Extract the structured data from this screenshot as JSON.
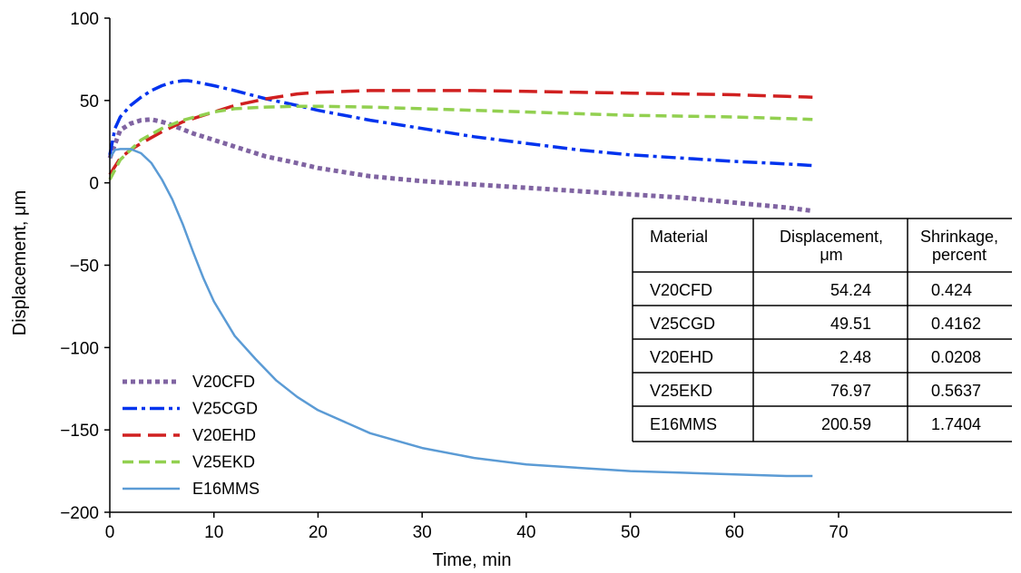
{
  "chart_data": {
    "type": "line",
    "title": "",
    "xlabel": "Time, min",
    "ylabel": "Displacement, μm",
    "xlim": [
      0,
      70
    ],
    "ylim": [
      -200,
      100
    ],
    "xticks": [
      0,
      10,
      20,
      30,
      40,
      50,
      60,
      70
    ],
    "yticks": [
      100,
      50,
      0,
      -50,
      -100,
      -150,
      -200
    ],
    "ytick_labels": [
      "100",
      "50",
      "0",
      "−50",
      "−100",
      "−150",
      "−200"
    ],
    "grid": false,
    "legend_position": "bottom-left",
    "series": [
      {
        "name": "V20CFD",
        "color": "#8064a2",
        "style": "dotted-square",
        "x": [
          0,
          1,
          2,
          3,
          4,
          5,
          6,
          8,
          10,
          12,
          15,
          18,
          20,
          25,
          30,
          35,
          40,
          45,
          50,
          55,
          60,
          65,
          67.5
        ],
        "y": [
          15,
          32,
          36,
          38,
          38.5,
          37,
          35,
          30,
          26,
          22,
          16,
          12,
          9,
          4,
          1,
          -1,
          -3,
          -5,
          -7,
          -9,
          -12,
          -15,
          -17
        ]
      },
      {
        "name": "V25CGD",
        "color": "#0033ee",
        "style": "dash-dot",
        "x": [
          0,
          0.5,
          1,
          2,
          3,
          4,
          5,
          6,
          7,
          7.5,
          8,
          10,
          12,
          15,
          18,
          20,
          25,
          30,
          35,
          40,
          45,
          50,
          55,
          60,
          65,
          67.5
        ],
        "y": [
          17,
          33,
          40,
          47,
          52,
          56,
          59,
          61,
          62,
          62,
          61.5,
          59,
          56,
          51,
          47,
          44,
          38,
          33,
          28,
          24,
          20,
          17,
          15,
          13,
          11.5,
          10.5
        ]
      },
      {
        "name": "V20EHD",
        "color": "#d02020",
        "style": "long-dash",
        "x": [
          0,
          1,
          2,
          3,
          5,
          7,
          10,
          12,
          15,
          18,
          20,
          25,
          30,
          35,
          40,
          45,
          50,
          55,
          60,
          65,
          67.5
        ],
        "y": [
          5,
          15,
          20,
          24,
          31,
          37,
          43,
          47,
          51,
          54,
          55,
          56,
          56,
          56,
          55.5,
          55,
          54.5,
          54,
          53.5,
          52.5,
          52
        ]
      },
      {
        "name": "V25EKD",
        "color": "#92d050",
        "style": "dash",
        "x": [
          0,
          1,
          2,
          3,
          5,
          7,
          10,
          12,
          15,
          18,
          20,
          25,
          30,
          35,
          40,
          45,
          50,
          55,
          60,
          65,
          67.5
        ],
        "y": [
          2,
          14,
          20,
          26,
          33,
          38,
          43,
          45,
          46,
          46.5,
          46.5,
          46,
          45,
          44,
          43,
          42,
          41,
          40.5,
          40,
          39,
          38.5
        ]
      },
      {
        "name": "E16MMS",
        "color": "#5b9bd5",
        "style": "solid",
        "x": [
          0,
          0.5,
          1,
          2,
          3,
          4,
          5,
          6,
          7,
          8,
          9,
          10,
          12,
          14,
          16,
          18,
          20,
          25,
          30,
          35,
          40,
          45,
          50,
          55,
          60,
          65,
          67.5
        ],
        "y": [
          15,
          20,
          20.5,
          20.5,
          18,
          12,
          2,
          -10,
          -25,
          -42,
          -58,
          -72,
          -93,
          -107,
          -120,
          -130,
          -138,
          -152,
          -161,
          -167,
          -171,
          -173,
          -175,
          -176,
          -177,
          -178,
          -178
        ]
      }
    ],
    "legend": [
      "V20CFD",
      "V25CGD",
      "V20EHD",
      "V25EKD",
      "E16MMS"
    ],
    "table": {
      "headers": [
        [
          "Material"
        ],
        [
          "Displacement,",
          "μm"
        ],
        [
          "Shrinkage,",
          "percent"
        ]
      ],
      "rows": [
        [
          "V20CFD",
          "54.24",
          "0.424"
        ],
        [
          "V25CGD",
          "49.51",
          "0.4162"
        ],
        [
          "V20EHD",
          "2.48",
          "0.0208"
        ],
        [
          "V25EKD",
          "76.97",
          "0.5637"
        ],
        [
          "E16MMS",
          "200.59",
          "1.7404"
        ]
      ]
    }
  }
}
